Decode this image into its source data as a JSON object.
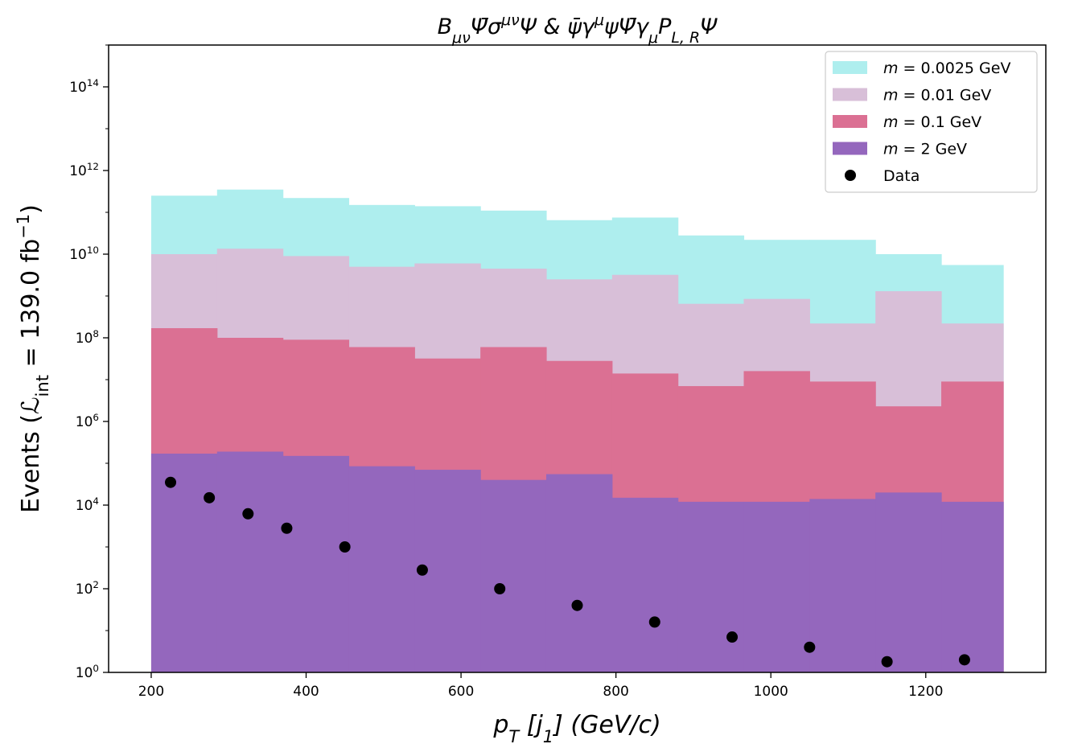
{
  "chart_data": {
    "type": "bar",
    "title": "B_μν Ψ̄ σ^μν Ψ  &  ψ̄ γ^μ ψ Ψ̄ γ_μ P_L,R Ψ",
    "title_parts": [
      {
        "t": "B",
        "s": "n"
      },
      {
        "t": "μν",
        "s": "sub"
      },
      {
        "t": "Ψ̄",
        "s": "n"
      },
      {
        "t": "σ",
        "s": "n"
      },
      {
        "t": "μν",
        "s": "sup"
      },
      {
        "t": "Ψ  &  ",
        "s": "n"
      },
      {
        "t": "ψ̄",
        "s": "n"
      },
      {
        "t": "γ",
        "s": "n"
      },
      {
        "t": "μ",
        "s": "sup"
      },
      {
        "t": "ψ",
        "s": "n"
      },
      {
        "t": "Ψ̄",
        "s": "n"
      },
      {
        "t": "γ",
        "s": "n"
      },
      {
        "t": "μ",
        "s": "sub"
      },
      {
        "t": "P",
        "s": "n"
      },
      {
        "t": "L, R",
        "s": "sub"
      },
      {
        "t": "Ψ",
        "s": "n"
      }
    ],
    "xlabel": "p_T [j_1] (GeV/c)",
    "xlabel_parts": [
      {
        "t": "p",
        "s": "n"
      },
      {
        "t": "T",
        "s": "sub"
      },
      {
        "t": " [",
        "s": "n"
      },
      {
        "t": "j",
        "s": "n"
      },
      {
        "t": "1",
        "s": "sub"
      },
      {
        "t": "] (GeV/c)",
        "s": "n"
      }
    ],
    "ylabel": "Events (ℒ_int = 139.0 fb^−1)",
    "ylabel_parts": [
      {
        "t": "Events (",
        "s": "n"
      },
      {
        "t": "ℒ",
        "s": "n"
      },
      {
        "t": "int",
        "s": "sub"
      },
      {
        "t": " = 139.0 fb",
        "s": "n"
      },
      {
        "t": "−1",
        "s": "sup"
      },
      {
        "t": ")",
        "s": "n"
      }
    ],
    "xlim": [
      145,
      1355
    ],
    "ylim_log10": [
      0,
      15
    ],
    "yscale": "log",
    "xticks": [
      200,
      400,
      600,
      800,
      1000,
      1200
    ],
    "yticks_exponent": [
      0,
      2,
      4,
      6,
      8,
      10,
      12,
      14
    ],
    "ytick_base": "10",
    "bin_edges": [
      200,
      285,
      370,
      455,
      540,
      625,
      710,
      795,
      880,
      965,
      1050,
      1135,
      1220,
      1300
    ],
    "series": [
      {
        "name": "m = 0.0025 GeV",
        "color": "#aeeeee",
        "values": [
          250000000000.0,
          350000000000.0,
          220000000000.0,
          150000000000.0,
          140000000000.0,
          110000000000.0,
          65000000000.0,
          75000000000.0,
          28000000000.0,
          22000000000.0,
          22000000000.0,
          10000000000.0,
          5500000000.0
        ]
      },
      {
        "name": "m = 0.01 GeV",
        "color": "#d8bfd8",
        "values": [
          10000000000.0,
          13500000000.0,
          9000000000.0,
          5000000000.0,
          6000000000.0,
          4500000000.0,
          2500000000.0,
          3200000000.0,
          650000000.0,
          850000000.0,
          220000000.0,
          1300000000.0,
          220000000.0
        ]
      },
      {
        "name": "m = 0.1 GeV",
        "color": "#db7093",
        "values": [
          170000000.0,
          100000000.0,
          90000000.0,
          60000000.0,
          32000000.0,
          60000000.0,
          28000000.0,
          14000000.0,
          7000000.0,
          16000000.0,
          9000000.0,
          2300000.0,
          9000000.0
        ]
      },
      {
        "name": "m = 2 GeV",
        "color": "#9467bd",
        "values": [
          170000.0,
          190000.0,
          150000.0,
          85000.0,
          70000.0,
          40000.0,
          55000.0,
          15000.0,
          12000.0,
          12000.0,
          14000.0,
          20000.0,
          12000.0
        ]
      }
    ],
    "data_points": {
      "name": "Data",
      "color": "#000000",
      "x": [
        225,
        275,
        325,
        375,
        450,
        550,
        650,
        750,
        850,
        950,
        1050,
        1150,
        1250
      ],
      "y": [
        35000,
        15000,
        6200,
        2800,
        1000,
        280,
        100,
        40,
        16,
        7,
        4,
        1.8,
        2
      ]
    },
    "legend": {
      "placement": "upper-right",
      "entries": [
        {
          "pre": "m",
          "post": " = 0.0025 GeV"
        },
        {
          "pre": "m",
          "post": " = 0.01 GeV"
        },
        {
          "pre": "m",
          "post": " = 0.1 GeV"
        },
        {
          "pre": "m",
          "post": " = 2 GeV"
        },
        {
          "pre": "",
          "post": "Data"
        }
      ]
    },
    "grid": false
  }
}
